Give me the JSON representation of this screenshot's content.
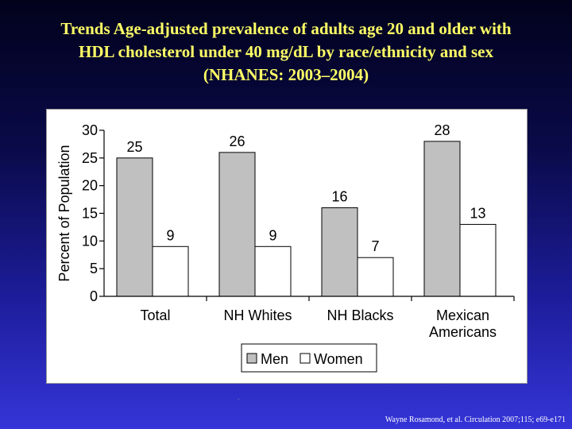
{
  "slide": {
    "title_lines": [
      "Trends Age-adjusted prevalence of adults age 20 and older with",
      "HDL cholesterol under 40 mg/dL by race/ethnicity and sex",
      "(NHANES: 2003–2004)"
    ],
    "citation": "Wayne Rosamond, et al. Circulation 2007;115; e69-e171"
  },
  "colors": {
    "title": "#ffff66",
    "men_bar": "#c0c0c0",
    "women_bar": "#ffffff",
    "background_top": "#02021c",
    "background_bottom": "#3535d8"
  },
  "chart_data": {
    "type": "bar",
    "title": "",
    "xlabel": "",
    "ylabel": "Percent of Population",
    "ylim": [
      0,
      30
    ],
    "yticks": [
      0,
      5,
      10,
      15,
      20,
      25,
      30
    ],
    "grid": false,
    "legend_position": "bottom-center",
    "categories": [
      [
        "Total"
      ],
      [
        "NH Whites"
      ],
      [
        "NH Blacks"
      ],
      [
        "Mexican",
        "Americans"
      ]
    ],
    "series": [
      {
        "name": "Men",
        "values": [
          25,
          26,
          16,
          28
        ],
        "color": "#c0c0c0"
      },
      {
        "name": "Women",
        "values": [
          9,
          9,
          7,
          13
        ],
        "color": "#ffffff"
      }
    ]
  }
}
